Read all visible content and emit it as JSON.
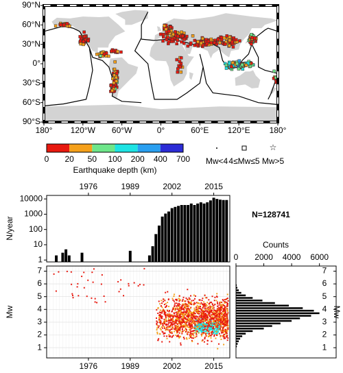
{
  "chart_data": [
    {
      "type": "map",
      "xlim": [
        -180,
        180
      ],
      "ylim": [
        -90,
        90
      ],
      "xticks": [
        {
          "value": -180,
          "label": "180°"
        },
        {
          "value": -120,
          "label": "120°W"
        },
        {
          "value": -60,
          "label": "60°W"
        },
        {
          "value": 0,
          "label": "0°"
        },
        {
          "value": 60,
          "label": "60°E"
        },
        {
          "value": 120,
          "label": "120°E"
        },
        {
          "value": 180,
          "label": "180°"
        }
      ],
      "yticks": [
        {
          "value": 90,
          "label": "90°N"
        },
        {
          "value": 60,
          "label": "60°N"
        },
        {
          "value": 30,
          "label": "30°N"
        },
        {
          "value": 0,
          "label": "0°"
        },
        {
          "value": -30,
          "label": "30°S"
        },
        {
          "value": -60,
          "label": "60°S"
        },
        {
          "value": -90,
          "label": "90°S"
        }
      ],
      "colorbar": {
        "title": "Earthquake depth (km)",
        "boundaries": [
          0,
          20,
          50,
          100,
          200,
          400,
          700
        ],
        "colors": [
          "#e8190f",
          "#f5a01a",
          "#6ee68a",
          "#1ee3e3",
          "#2a9ff0",
          "#2c2cd6"
        ]
      },
      "legend": [
        "Mw<4",
        "4≤Mw≤5",
        "Mw>5"
      ]
    },
    {
      "type": "bar",
      "ylabel": "N/year",
      "annotation": "N=128741",
      "color": "#000000",
      "log": true,
      "x": [
        1966,
        1968,
        1969,
        1970,
        1974,
        1989,
        1995,
        1996,
        1997,
        1998,
        1999,
        2000,
        2001,
        2002,
        2003,
        2004,
        2005,
        2006,
        2007,
        2008,
        2009,
        2010,
        2011,
        2012,
        2013,
        2014,
        2015,
        2016,
        2017,
        2018,
        2019
      ],
      "values": [
        2,
        3,
        5,
        2,
        3,
        4,
        2,
        8,
        50,
        180,
        700,
        1100,
        1500,
        2500,
        3000,
        3500,
        4000,
        4000,
        4000,
        5000,
        4000,
        5000,
        6000,
        5000,
        6000,
        8000,
        12000,
        10000,
        9000,
        8500,
        8500
      ],
      "xlim": [
        1963,
        2020
      ],
      "xticks": [
        1976,
        1989,
        2002,
        2015
      ],
      "ylim": [
        0.75,
        17000
      ],
      "yticks": [
        1,
        10,
        100,
        1000,
        10000
      ]
    },
    {
      "type": "scatter",
      "ylabel": "Mw",
      "grid": true,
      "xlim": [
        1963,
        2020
      ],
      "xticks": [
        1976,
        1989,
        2002,
        2015
      ],
      "ylim": [
        0.2,
        7.4
      ],
      "yticks": [
        1,
        2,
        3,
        4,
        5,
        6,
        7
      ]
    },
    {
      "type": "histogram",
      "orientation": "horizontal",
      "title": "Counts",
      "ylabel": "Mw",
      "color": "#000000",
      "bins": [
        0.6,
        0.8,
        1.0,
        1.2,
        1.4,
        1.6,
        1.8,
        2.0,
        2.2,
        2.4,
        2.6,
        2.8,
        3.0,
        3.2,
        3.4,
        3.6,
        3.8,
        4.0,
        4.2,
        4.4,
        4.6,
        4.8,
        5.0,
        5.2,
        5.4,
        5.6,
        5.8,
        6.0,
        6.2,
        6.4,
        6.6,
        6.8,
        7.0
      ],
      "values": [
        5,
        20,
        60,
        120,
        200,
        300,
        450,
        700,
        1200,
        2000,
        2600,
        3200,
        4000,
        4600,
        5400,
        6000,
        5600,
        4800,
        3800,
        2800,
        1900,
        1200,
        700,
        380,
        200,
        100,
        50,
        25,
        12,
        6,
        3,
        1
      ],
      "xlim": [
        0,
        7200
      ],
      "xticks": [
        0,
        2000,
        4000,
        6000
      ],
      "ylim": [
        0.2,
        7.4
      ],
      "yticks": [
        1,
        2,
        3,
        4,
        5,
        6,
        7
      ]
    }
  ]
}
